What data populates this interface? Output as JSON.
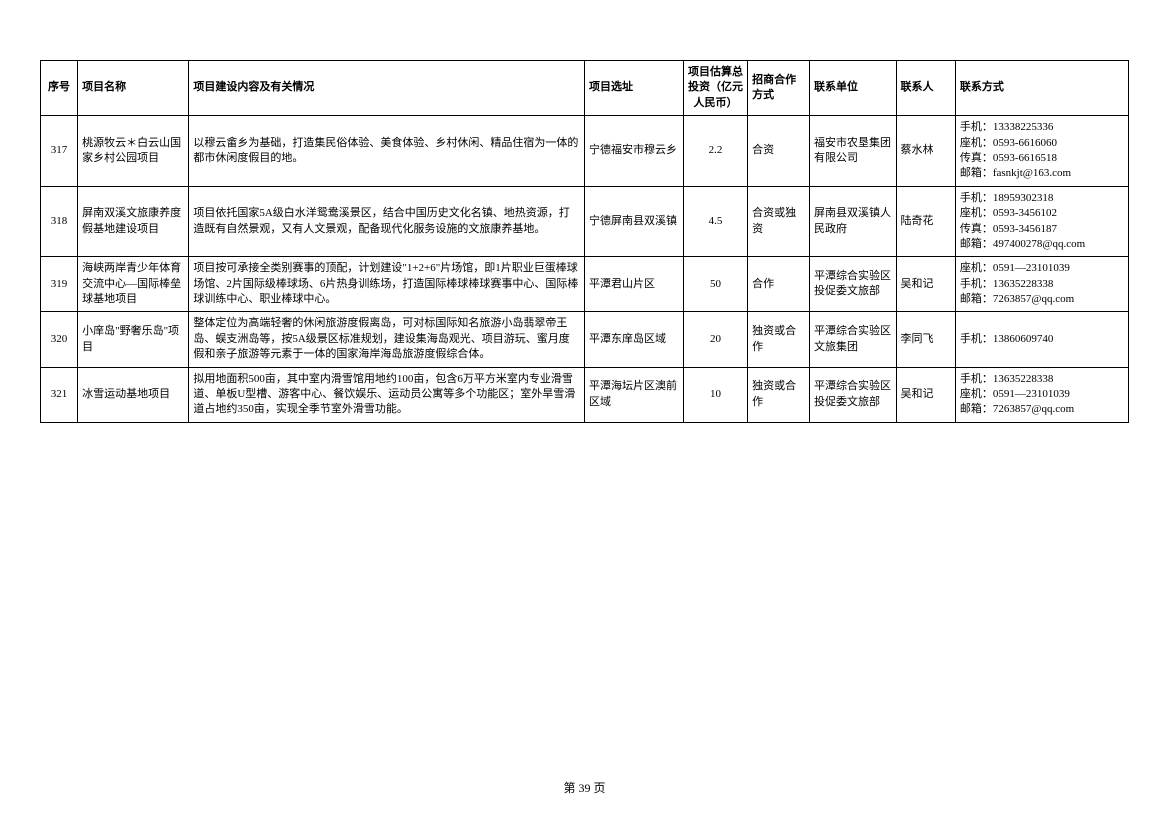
{
  "table": {
    "columns": [
      "序号",
      "项目名称",
      "项目建设内容及有关情况",
      "项目选址",
      "项目估算总投资（亿元人民币）",
      "招商合作方式",
      "联系单位",
      "联系人",
      "联系方式"
    ],
    "rows": [
      {
        "seq": "317",
        "name": "桃源牧云＊白云山国家乡村公园项目",
        "content": "以穆云畲乡为基础，打造集民俗体验、美食体验、乡村休闲、精品住宿为一体的都市休闲度假目的地。",
        "location": "宁德福安市穆云乡",
        "invest": "2.2",
        "mode": "合资",
        "unit": "福安市农垦集团有限公司",
        "contact": "蔡水林",
        "phone": "手机：13338225336\n座机：0593-6616060\n传真：0593-6616518\n邮箱：fasnkjt@163.com"
      },
      {
        "seq": "318",
        "name": "屏南双溪文旅康养度假基地建设项目",
        "content": "项目依托国家5A级白水洋鸳鸯溪景区，结合中国历史文化名镇、地热资源，打造既有自然景观，又有人文景观，配备现代化服务设施的文旅康养基地。",
        "location": "宁德屏南县双溪镇",
        "invest": "4.5",
        "mode": "合资或独资",
        "unit": "屏南县双溪镇人民政府",
        "contact": "陆奇花",
        "phone": "手机：18959302318\n座机：0593-3456102\n传真：0593-3456187\n邮箱：497400278@qq.com"
      },
      {
        "seq": "319",
        "name": "海峡两岸青少年体育交流中心—国际棒垒球基地项目",
        "content": "项目按可承接全类别赛事的顶配，计划建设\"1+2+6\"片场馆，即1片职业巨蛋棒球场馆、2片国际级棒球场、6片热身训练场，打造国际棒球棒球赛事中心、国际棒球训练中心、职业棒球中心。",
        "location": "平潭君山片区",
        "invest": "50",
        "mode": "合作",
        "unit": "平潭综合实验区投促委文旅部",
        "contact": "吴和记",
        "phone": "座机：0591—23101039\n手机：13635228338\n邮箱：7263857@qq.com"
      },
      {
        "seq": "320",
        "name": "小庠岛\"野奢乐岛\"项目",
        "content": "整体定位为高端轻奢的休闲旅游度假离岛，可对标国际知名旅游小岛翡翠帝王岛、蜈支洲岛等，按5A级景区标准规划，建设集海岛观光、项目游玩、蜜月度假和亲子旅游等元素于一体的国家海岸海岛旅游度假综合体。",
        "location": "平潭东庠岛区域",
        "invest": "20",
        "mode": "独资或合作",
        "unit": "平潭综合实验区文旅集团",
        "contact": "李同飞",
        "phone": "手机：13860609740"
      },
      {
        "seq": "321",
        "name": "冰雪运动基地项目",
        "content": "拟用地面积500亩，其中室内滑雪馆用地约100亩，包含6万平方米室内专业滑雪道、单板U型槽、游客中心、餐饮娱乐、运动员公寓等多个功能区；室外旱雪滑道占地约350亩，实现全季节室外滑雪功能。",
        "location": "平潭海坛片区澳前区域",
        "invest": "10",
        "mode": "独资或合作",
        "unit": "平潭综合实验区投促委文旅部",
        "contact": "吴和记",
        "phone": "手机：13635228338\n座机：0591—23101039\n邮箱：7263857@qq.com"
      }
    ]
  },
  "footer": "第 39 页"
}
